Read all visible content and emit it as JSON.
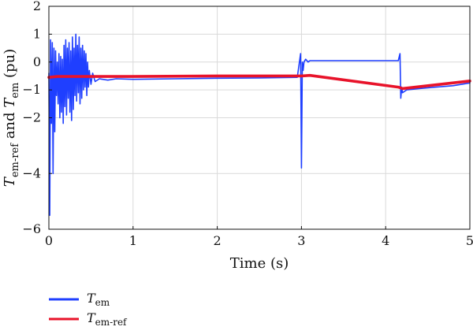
{
  "chart_data": {
    "type": "line",
    "xlabel": "Time (s)",
    "ylabel": {
      "pre_symbol": "T",
      "pre_sub": "em-ref",
      "mid": " and ",
      "post_symbol": "T",
      "post_sub": "em",
      "tail": " (pu)"
    },
    "xlim": [
      0,
      5
    ],
    "ylim": [
      -6,
      2
    ],
    "xticks": [
      "0",
      "1",
      "2",
      "3",
      "4",
      "5"
    ],
    "yticks": [
      "2",
      "1",
      "0",
      "−1",
      "−2",
      "−4",
      "−6"
    ],
    "ytick_values": [
      2,
      1,
      0,
      -1,
      -2,
      -4,
      -6
    ],
    "grid": true,
    "legend_position": "below-left",
    "series": [
      {
        "symbol": "T",
        "sub": "em",
        "color": "#1f3fff",
        "x": [
          0,
          0.01,
          0.02,
          0.03,
          0.04,
          0.05,
          0.06,
          0.07,
          0.08,
          0.09,
          0.1,
          0.11,
          0.12,
          0.13,
          0.14,
          0.15,
          0.16,
          0.17,
          0.18,
          0.19,
          0.2,
          0.21,
          0.22,
          0.23,
          0.24,
          0.25,
          0.26,
          0.27,
          0.28,
          0.29,
          0.3,
          0.31,
          0.32,
          0.33,
          0.34,
          0.35,
          0.36,
          0.37,
          0.38,
          0.39,
          0.4,
          0.41,
          0.42,
          0.43,
          0.44,
          0.45,
          0.46,
          0.47,
          0.48,
          0.5,
          0.52,
          0.55,
          0.6,
          0.7,
          0.8,
          1.0,
          1.5,
          2.0,
          2.5,
          2.95,
          2.99,
          3.0,
          3.01,
          3.02,
          3.03,
          3.05,
          3.08,
          3.1,
          3.2,
          3.5,
          4.0,
          4.15,
          4.17,
          4.18,
          4.19,
          4.2,
          4.25,
          4.4,
          4.6,
          4.8,
          5.0
        ],
        "values": [
          -0.4,
          -5.5,
          0.8,
          -2.2,
          0.7,
          -4.0,
          0.5,
          -2.5,
          0.4,
          -1.2,
          0.0,
          -1.5,
          0.3,
          -2.0,
          0.2,
          -1.8,
          0.1,
          -2.2,
          0.6,
          -1.6,
          0.8,
          -1.9,
          0.5,
          -1.3,
          0.7,
          -1.8,
          0.4,
          -2.1,
          0.9,
          -1.7,
          0.5,
          -1.2,
          1.0,
          -1.4,
          0.6,
          -1.1,
          0.9,
          -1.5,
          0.5,
          -1.3,
          0.6,
          -1.0,
          0.4,
          -0.9,
          0.3,
          -1.2,
          0.0,
          -0.9,
          -0.3,
          -0.8,
          -0.4,
          -0.7,
          -0.6,
          -0.65,
          -0.6,
          -0.62,
          -0.6,
          -0.58,
          -0.57,
          -0.55,
          0.3,
          -3.8,
          0.0,
          -0.3,
          0.0,
          0.1,
          0.0,
          0.05,
          0.05,
          0.05,
          0.05,
          0.05,
          0.3,
          -1.3,
          -0.9,
          -1.1,
          -1.0,
          -0.95,
          -0.9,
          -0.85,
          -0.75
        ]
      },
      {
        "symbol": "T",
        "sub": "em-ref",
        "color": "#e8132a",
        "x": [
          0,
          0.1,
          0.5,
          1.0,
          2.0,
          3.0,
          3.1,
          4.15,
          4.2,
          5.0
        ],
        "values": [
          -0.55,
          -0.52,
          -0.52,
          -0.52,
          -0.5,
          -0.5,
          -0.48,
          -0.9,
          -0.95,
          -0.68
        ]
      }
    ]
  }
}
